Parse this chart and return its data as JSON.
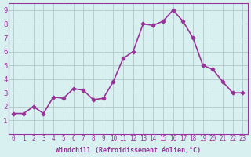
{
  "x": [
    0,
    1,
    2,
    3,
    4,
    5,
    6,
    7,
    8,
    9,
    10,
    11,
    12,
    13,
    14,
    15,
    16,
    17,
    18,
    19,
    20,
    21,
    22,
    23
  ],
  "y": [
    1.5,
    1.5,
    2.0,
    1.5,
    2.7,
    2.6,
    3.3,
    3.2,
    2.5,
    2.6,
    3.8,
    5.5,
    6.0,
    8.0,
    7.9,
    8.2,
    9.0,
    8.2,
    7.0,
    5.0,
    4.7,
    3.8,
    3.0,
    3.0
  ],
  "line_color": "#993399",
  "marker": "P",
  "marker_size": 3,
  "bg_color": "#d8f0f0",
  "grid_color": "#b0c8c8",
  "xlabel": "Windchill (Refroidissement éolien,°C)",
  "xlabel_color": "#993399",
  "tick_color": "#993399",
  "ylim": [
    0,
    9.5
  ],
  "xlim": [
    -0.5,
    23.5
  ],
  "yticks": [
    1,
    2,
    3,
    4,
    5,
    6,
    7,
    8,
    9
  ],
  "xticks": [
    0,
    1,
    2,
    3,
    4,
    5,
    6,
    7,
    8,
    9,
    10,
    11,
    12,
    13,
    14,
    15,
    16,
    17,
    18,
    19,
    20,
    21,
    22,
    23
  ],
  "xtick_labels": [
    "0",
    "1",
    "2",
    "3",
    "4",
    "5",
    "6",
    "7",
    "8",
    "9",
    "10",
    "11",
    "12",
    "13",
    "14",
    "15",
    "16",
    "17",
    "18",
    "19",
    "20",
    "21",
    "22",
    "23"
  ],
  "line_width": 1.2,
  "axis_spine_color": "#993399",
  "markeredgewidth": 1.0
}
